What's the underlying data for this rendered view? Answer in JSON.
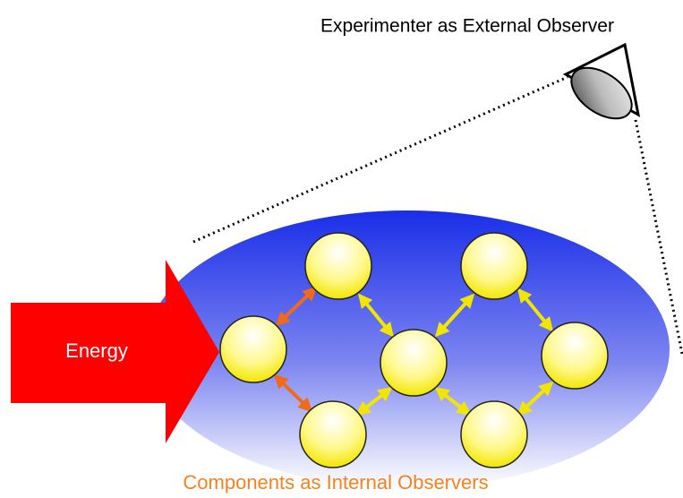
{
  "header": {
    "title": "Experimenter as External Observer"
  },
  "energy": {
    "label": "Energy"
  },
  "footer": {
    "label": "Components as Internal Observers"
  }
}
